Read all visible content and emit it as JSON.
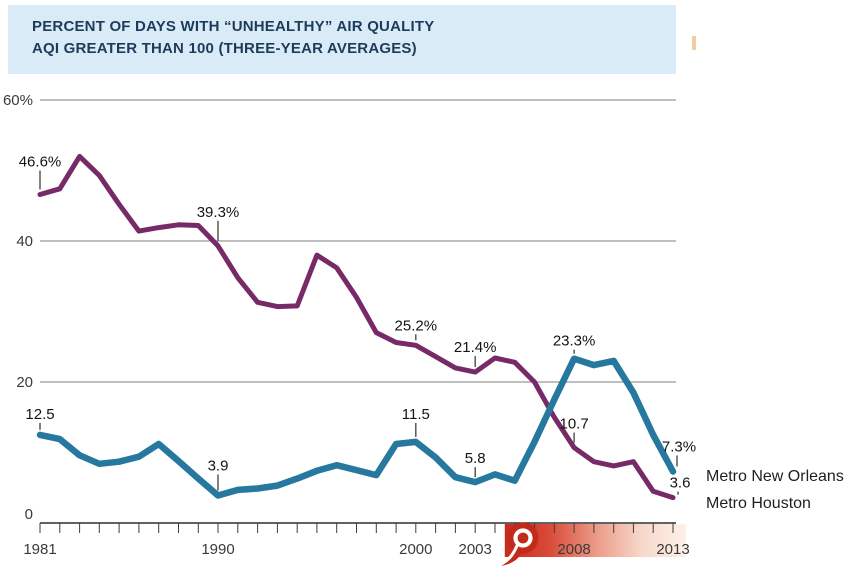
{
  "title": {
    "line1": "PERCENT OF DAYS WITH “UNHEALTHY” AIR QUALITY",
    "line2": "AQI GREATER THAN 100 (THREE-YEAR AVERAGES)"
  },
  "legend": {
    "new_orleans": "Metro New Orleans",
    "houston": "Metro Houston"
  },
  "colors": {
    "banner_bg": "#d9ebf7",
    "banner_text": "#1e3c5a",
    "new_orleans_line": "#26789e",
    "houston_line": "#772a67",
    "band_red": "#c92a1d",
    "gridline": "#7f7f7f"
  },
  "chart_data": {
    "type": "line",
    "title": "PERCENT OF DAYS WITH “UNHEALTHY” AIR QUALITY — AQI GREATER THAN 100 (THREE-YEAR AVERAGES)",
    "x_start": 1981,
    "x_end": 2013,
    "ylim": [
      0,
      60
    ],
    "grid": "horizontal",
    "legend_position": "right-of-line-ends",
    "y_gridlines": [
      60,
      40,
      20
    ],
    "y_ticks": [
      {
        "value": 60,
        "label": "60%",
        "dy": 5
      },
      {
        "value": 40,
        "label": "40",
        "dy": 5
      },
      {
        "value": 20,
        "label": "20",
        "dy": 5
      },
      {
        "value": 0,
        "label": "0",
        "dy": -4
      }
    ],
    "x_axis_labels": [
      {
        "year": 1981,
        "label": "1981"
      },
      {
        "year": 1990,
        "label": "1990"
      },
      {
        "year": 2000,
        "label": "2000"
      },
      {
        "year": 2003,
        "label": "2003"
      },
      {
        "year": 2008,
        "label": "2008"
      },
      {
        "year": 2013,
        "label": "2013"
      }
    ],
    "series": [
      {
        "id": "houston",
        "name": "Metro Houston",
        "color": "#772a67",
        "width": 5,
        "values": [
          46.6,
          47.4,
          52.0,
          49.3,
          45.2,
          41.4,
          41.9,
          42.3,
          42.2,
          39.3,
          34.8,
          31.3,
          30.7,
          30.8,
          38.0,
          36.2,
          32.0,
          27.0,
          25.6,
          25.2,
          23.6,
          22.0,
          21.4,
          23.4,
          22.8,
          20.0,
          15.0,
          10.7,
          8.7,
          8.1,
          8.7,
          4.5,
          3.6
        ],
        "point_labels": [
          {
            "year": 1981,
            "text": "46.6%",
            "dy": 28
          },
          {
            "year": 1990,
            "text": "39.3%",
            "dy": 29
          },
          {
            "year": 2000,
            "text": "25.2%",
            "dy": 15
          },
          {
            "year": 2003,
            "text": "21.4%",
            "dy": 20
          },
          {
            "year": 2008,
            "text": "10.7",
            "dy": 19
          },
          {
            "year": 2013,
            "text": "3.6",
            "dy": 10,
            "dx": 7
          }
        ]
      },
      {
        "id": "new-orleans",
        "name": "Metro New Orleans",
        "color": "#26789e",
        "width": 6.5,
        "values": [
          12.5,
          11.9,
          9.6,
          8.4,
          8.7,
          9.4,
          11.2,
          8.8,
          6.3,
          3.9,
          4.7,
          4.9,
          5.3,
          6.3,
          7.4,
          8.2,
          7.5,
          6.8,
          11.2,
          11.5,
          9.3,
          6.5,
          5.8,
          6.9,
          6.0,
          11.5,
          17.5,
          23.3,
          22.4,
          23.0,
          18.5,
          12.5,
          7.3
        ],
        "point_labels": [
          {
            "year": 1981,
            "text": "12.5",
            "dy": 16
          },
          {
            "year": 1990,
            "text": "3.9",
            "dy": 25
          },
          {
            "year": 2000,
            "text": "11.5",
            "dy": 23
          },
          {
            "year": 2003,
            "text": "5.8",
            "dy": 19
          },
          {
            "year": 2008,
            "text": "23.3%",
            "dy": 13
          },
          {
            "year": 2013,
            "text": "7.3%",
            "dy": 20,
            "dx": 6
          }
        ]
      }
    ],
    "highlight_band": {
      "start_year": 2005,
      "end_year": 2013,
      "icon": "hurricane-icon",
      "gradient": [
        "#c92a1d",
        "#d94b38",
        "#eb9a86",
        "#f7d7c9",
        "#fdf1ea"
      ]
    }
  }
}
